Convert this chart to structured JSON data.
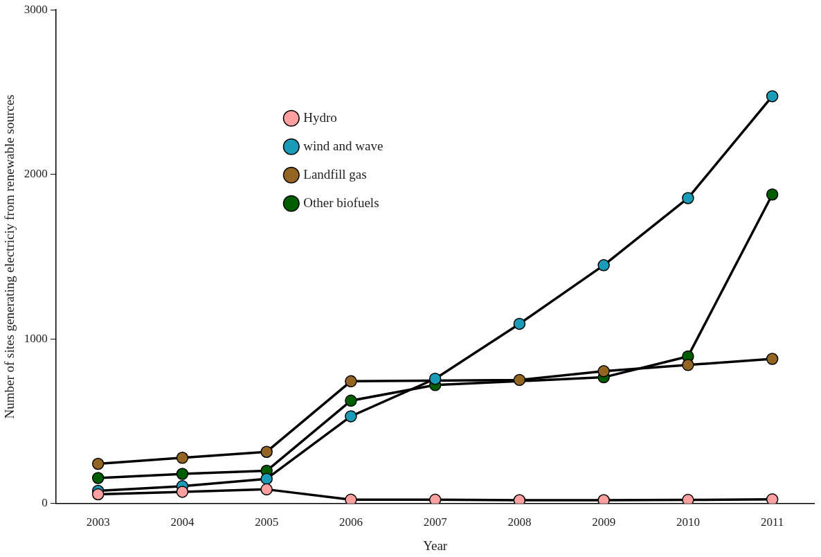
{
  "chart_data": {
    "type": "line",
    "xlabel": "Year",
    "ylabel": "Number of sites generating electriciy from renewable sources",
    "categories": [
      "2003",
      "2004",
      "2005",
      "2006",
      "2007",
      "2008",
      "2009",
      "2010",
      "2011"
    ],
    "ylim": [
      0,
      3000
    ],
    "yticks": [
      0,
      1000,
      2000,
      3000
    ],
    "grid": false,
    "legend": "top left",
    "marker": "circle",
    "line_style": "solid",
    "series": [
      {
        "name": "Hydro",
        "color": "#ffa0a0",
        "values": [
          56,
          71,
          86,
          23,
          23,
          20,
          20,
          22,
          25
        ]
      },
      {
        "name": "wind and wave",
        "color": "#1a9cb8",
        "values": [
          77,
          105,
          150,
          530,
          758,
          1092,
          1448,
          1856,
          2475
        ]
      },
      {
        "name": "Landfill gas",
        "color": "#946522",
        "values": [
          241,
          278,
          314,
          743,
          null,
          751,
          804,
          842,
          879
        ]
      },
      {
        "name": "Other biofuels",
        "color": "#005e00",
        "values": [
          155,
          180,
          199,
          625,
          720,
          null,
          767,
          894,
          1878
        ]
      }
    ]
  }
}
